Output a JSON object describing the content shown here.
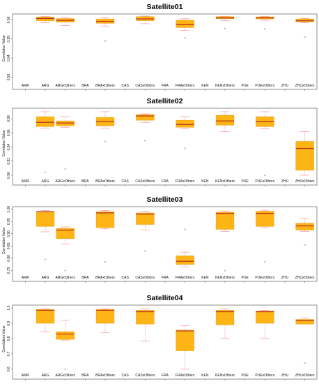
{
  "chart_data": [
    {
      "type": "box",
      "title": "Satellite01",
      "ylabel": "Correlation Value",
      "ylim": [
        0.928,
        0.962
      ],
      "yticks": [
        0.93,
        0.94,
        0.95,
        0.96
      ],
      "yticklabels": [
        "0.93",
        "0.94",
        "0.95",
        "0.96"
      ],
      "categories": [
        "AMR",
        "ARG",
        "ARGxOthers",
        "BRA",
        "BRAxOthers",
        "CAS",
        "CASxOthers",
        "FRA",
        "FRAxOthers",
        "KEN",
        "KENxOthers",
        "PUE",
        "PUExOthers",
        "ZHU",
        "ZHUxOthers"
      ],
      "boxes": [
        {
          "category": "ARG",
          "lower": 0.9585,
          "q1": 0.9595,
          "median": 0.9608,
          "q3": 0.9615,
          "upper": 0.9618,
          "outliers": []
        },
        {
          "category": "ARGxOthers",
          "lower": 0.957,
          "q1": 0.9588,
          "median": 0.9598,
          "q3": 0.9607,
          "upper": 0.9615,
          "outliers": []
        },
        {
          "category": "BRAxOthers",
          "lower": 0.9568,
          "q1": 0.9582,
          "median": 0.9592,
          "q3": 0.9605,
          "upper": 0.961,
          "outliers": [
            0.949
          ]
        },
        {
          "category": "CASxOthers",
          "lower": 0.958,
          "q1": 0.9596,
          "median": 0.9605,
          "q3": 0.9617,
          "upper": 0.962,
          "outliers": []
        },
        {
          "category": "FRAxOthers",
          "lower": 0.9545,
          "q1": 0.956,
          "median": 0.9575,
          "q3": 0.9598,
          "upper": 0.9606,
          "outliers": [
            0.9505
          ]
        },
        {
          "category": "KENxOthers",
          "lower": 0.9597,
          "q1": 0.9606,
          "median": 0.961,
          "q3": 0.9617,
          "upper": 0.9618,
          "outliers": [
            0.9555
          ]
        },
        {
          "category": "PUExOthers",
          "lower": 0.9598,
          "q1": 0.9605,
          "median": 0.961,
          "q3": 0.9616,
          "upper": 0.9618,
          "outliers": [
            0.9552
          ]
        },
        {
          "category": "ZHUxOthers",
          "lower": 0.9586,
          "q1": 0.959,
          "median": 0.9595,
          "q3": 0.9605,
          "upper": 0.9608,
          "outliers": [
            0.951
          ]
        }
      ]
    },
    {
      "type": "box",
      "title": "Satellite02",
      "ylabel": "Correlation Value",
      "ylim": [
        0.898,
        0.992
      ],
      "yticks": [
        0.9,
        0.92,
        0.94,
        0.96,
        0.98
      ],
      "yticklabels": [
        "0.90",
        "0.92",
        "0.94",
        "0.96",
        "0.98"
      ],
      "categories": [
        "AMR",
        "ARG",
        "ARGxOthers",
        "BRA",
        "BRAxOthers",
        "CAS",
        "CASxOthers",
        "FRA",
        "FRAxOthers",
        "KEN",
        "KENxOthers",
        "PUE",
        "PUExOthers",
        "ZHU",
        "ZHUxOthers"
      ],
      "boxes": [
        {
          "category": "ARG",
          "lower": 0.967,
          "q1": 0.969,
          "median": 0.975,
          "q3": 0.983,
          "upper": 0.99,
          "outliers": [
            0.904
          ]
        },
        {
          "category": "ARGxOthers",
          "lower": 0.968,
          "q1": 0.97,
          "median": 0.974,
          "q3": 0.977,
          "upper": 0.983,
          "outliers": [
            0.909
          ]
        },
        {
          "category": "BRAxOthers",
          "lower": 0.967,
          "q1": 0.97,
          "median": 0.976,
          "q3": 0.982,
          "upper": 0.99,
          "outliers": [
            0.948
          ]
        },
        {
          "category": "CASxOthers",
          "lower": 0.975,
          "q1": 0.978,
          "median": 0.984,
          "q3": 0.986,
          "upper": 0.987,
          "outliers": [
            0.949
          ]
        },
        {
          "category": "FRAxOthers",
          "lower": 0.966,
          "q1": 0.968,
          "median": 0.972,
          "q3": 0.978,
          "upper": 0.983,
          "outliers": [
            0.938
          ]
        },
        {
          "category": "KENxOthers",
          "lower": 0.962,
          "q1": 0.971,
          "median": 0.977,
          "q3": 0.985,
          "upper": 0.99,
          "outliers": []
        },
        {
          "category": "PUExOthers",
          "lower": 0.966,
          "q1": 0.969,
          "median": 0.976,
          "q3": 0.983,
          "upper": 0.99,
          "outliers": [
            0.9
          ]
        },
        {
          "category": "ZHUxOthers",
          "lower": 0.9,
          "q1": 0.907,
          "median": 0.938,
          "q3": 0.948,
          "upper": 0.962,
          "outliers": []
        }
      ]
    },
    {
      "type": "box",
      "title": "Satellite03",
      "ylabel": "Correlation Value",
      "ylim": [
        0.74,
        1.002
      ],
      "yticks": [
        0.75,
        0.8,
        0.85,
        0.9,
        0.95,
        1.0
      ],
      "yticklabels": [
        "0.75",
        "0.80",
        "0.85",
        "0.90",
        "0.95",
        "1.00"
      ],
      "categories": [
        "AMR",
        "ARG",
        "ARGxOthers",
        "BRA",
        "BRAxOthers",
        "CAS",
        "CASxOthers",
        "FRA",
        "FRAxOthers",
        "KEN",
        "KENxOthers",
        "PUE",
        "PUExOthers",
        "ZHU",
        "ZHUxOthers"
      ],
      "boxes": [
        {
          "category": "ARG",
          "lower": 0.908,
          "q1": 0.93,
          "median": 0.99,
          "q3": 0.99,
          "upper": 0.995,
          "outliers": [
            0.795
          ]
        },
        {
          "category": "ARGxOthers",
          "lower": 0.858,
          "q1": 0.88,
          "median": 0.915,
          "q3": 0.922,
          "upper": 0.928,
          "outliers": [
            0.75
          ]
        },
        {
          "category": "BRAxOthers",
          "lower": 0.92,
          "q1": 0.925,
          "median": 0.985,
          "q3": 0.99,
          "upper": 0.995,
          "outliers": [
            0.785
          ]
        },
        {
          "category": "CASxOthers",
          "lower": 0.915,
          "q1": 0.938,
          "median": 0.98,
          "q3": 0.985,
          "upper": 0.992,
          "outliers": [
            0.83
          ]
        },
        {
          "category": "FRAxOthers",
          "lower": 0.765,
          "q1": 0.775,
          "median": 0.788,
          "q3": 0.81,
          "upper": 0.825,
          "outliers": [
            0.918
          ]
        },
        {
          "category": "KENxOthers",
          "lower": 0.91,
          "q1": 0.918,
          "median": 0.983,
          "q3": 0.988,
          "upper": 0.993,
          "outliers": [
            0.75
          ]
        },
        {
          "category": "PUExOthers",
          "lower": 0.925,
          "q1": 0.93,
          "median": 0.983,
          "q3": 0.992,
          "upper": 0.996,
          "outliers": [
            0.785
          ]
        },
        {
          "category": "ZHUxOthers",
          "lower": 0.91,
          "q1": 0.915,
          "median": 0.932,
          "q3": 0.943,
          "upper": 0.962,
          "outliers": [
            0.855
          ]
        }
      ]
    },
    {
      "type": "box",
      "title": "Satellite04",
      "ylabel": "Correlation Value",
      "ylim": [
        0.59,
        1.005
      ],
      "yticks": [
        0.6,
        0.7,
        0.8,
        0.9,
        1.0
      ],
      "yticklabels": [
        "0.6",
        "0.7",
        "0.8",
        "0.9",
        "1.0"
      ],
      "categories": [
        "AMR",
        "ARG",
        "ARGxOthers",
        "BRA",
        "BRAxOthers",
        "CAS",
        "CASxOthers",
        "FRA",
        "FRAxOthers",
        "KEN",
        "KENxOthers",
        "PUE",
        "PUExOthers",
        "ZHU",
        "ZHUxOthers"
      ],
      "boxes": [
        {
          "category": "ARG",
          "lower": 0.845,
          "q1": 0.9,
          "median": 0.985,
          "q3": 0.99,
          "upper": 0.995,
          "outliers": []
        },
        {
          "category": "ARGxOthers",
          "lower": 0.79,
          "q1": 0.795,
          "median": 0.83,
          "q3": 0.845,
          "upper": 0.92,
          "outliers": [
            0.6
          ]
        },
        {
          "category": "BRAxOthers",
          "lower": 0.838,
          "q1": 0.9,
          "median": 0.985,
          "q3": 0.99,
          "upper": 0.995,
          "outliers": []
        },
        {
          "category": "CASxOthers",
          "lower": 0.785,
          "q1": 0.895,
          "median": 0.975,
          "q3": 0.985,
          "upper": 0.995,
          "outliers": []
        },
        {
          "category": "FRAxOthers",
          "lower": 0.6,
          "q1": 0.72,
          "median": 0.85,
          "q3": 0.855,
          "upper": 0.885,
          "outliers": []
        },
        {
          "category": "KENxOthers",
          "lower": 0.8,
          "q1": 0.89,
          "median": 0.975,
          "q3": 0.985,
          "upper": 0.995,
          "outliers": []
        },
        {
          "category": "PUExOthers",
          "lower": 0.8,
          "q1": 0.9,
          "median": 0.975,
          "q3": 0.98,
          "upper": 0.985,
          "outliers": []
        },
        {
          "category": "ZHUxOthers",
          "lower": 0.895,
          "q1": 0.895,
          "median": 0.918,
          "q3": 0.925,
          "upper": 0.935,
          "outliers": [
            0.64
          ]
        }
      ]
    }
  ],
  "colors": {
    "box_fill": "#FDB515",
    "box_edge": "#E89A10",
    "median": "#B22222",
    "whisker": "#F08080",
    "outlier": "#666666",
    "frame": "#444444"
  }
}
